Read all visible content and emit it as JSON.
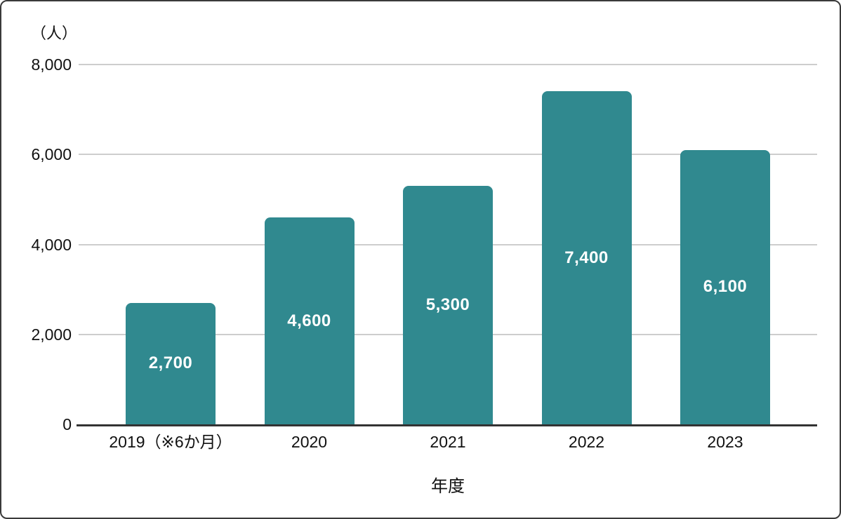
{
  "chart_data": {
    "type": "bar",
    "title": "",
    "unit_label": "（人）",
    "xlabel": "年度",
    "ylabel": "",
    "categories": [
      "2019（※6か月）",
      "2020",
      "2021",
      "2022",
      "2023"
    ],
    "values": [
      2700,
      4600,
      5300,
      7400,
      6100
    ],
    "value_labels": [
      "2,700",
      "4,600",
      "5,300",
      "7,400",
      "6,100"
    ],
    "y_ticks": [
      0,
      2000,
      4000,
      6000,
      8000
    ],
    "y_tick_labels": [
      "0",
      "2,000",
      "4,000",
      "6,000",
      "8,000"
    ],
    "ylim": [
      0,
      8000
    ],
    "grid": "horizontal",
    "legend_position": "none",
    "colors": {
      "bar": "#30898F",
      "bar_value_label": "#FFFFFF",
      "gridline": "#CDCDCD",
      "axis_line": "#333333",
      "text": "#111111",
      "frame_border": "#3A3A3A",
      "background": "#FFFFFF"
    }
  }
}
